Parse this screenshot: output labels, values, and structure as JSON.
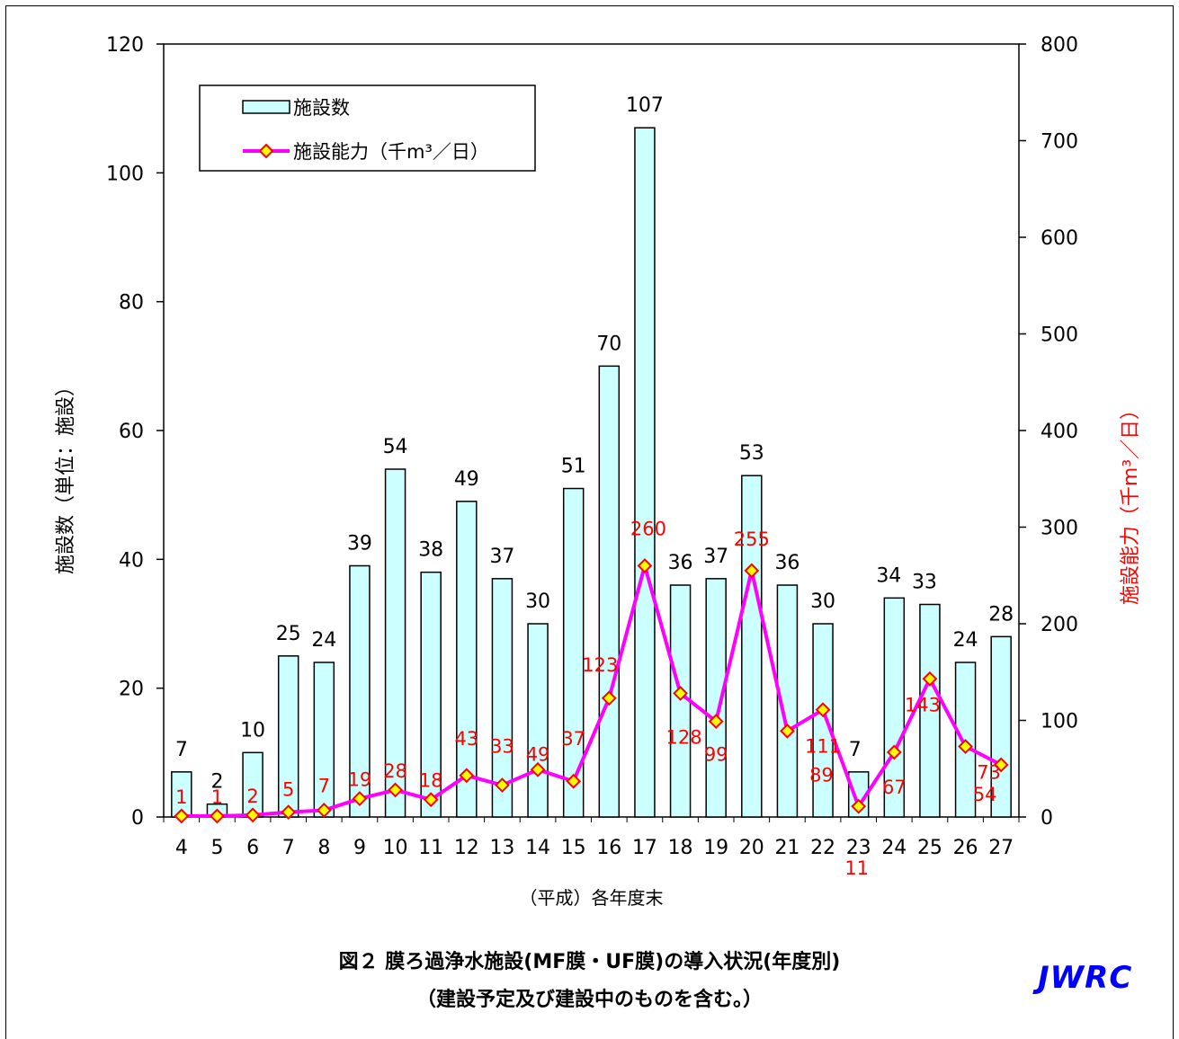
{
  "chart_data": {
    "type": "bar",
    "categories": [
      "4",
      "5",
      "6",
      "7",
      "8",
      "9",
      "10",
      "11",
      "12",
      "13",
      "14",
      "15",
      "16",
      "17",
      "18",
      "19",
      "20",
      "21",
      "22",
      "23",
      "24",
      "25",
      "26",
      "27"
    ],
    "xlabel": "（平成）各年度末",
    "ylabel": "施設数（単位：施設）",
    "y2label": "施設能力（千m³／日）",
    "ylim": [
      0,
      120
    ],
    "y2lim": [
      0,
      800
    ],
    "yticks": [
      "0",
      "20",
      "40",
      "60",
      "80",
      "100",
      "120"
    ],
    "y2ticks": [
      "0",
      "100",
      "200",
      "300",
      "400",
      "500",
      "600",
      "700",
      "800"
    ],
    "grid": false,
    "legend_position": "top-left",
    "series": [
      {
        "name": "施設数",
        "type": "bar",
        "axis": "left",
        "color": "#ccffff",
        "label_color": "#000000",
        "values": [
          7,
          2,
          10,
          25,
          24,
          39,
          54,
          38,
          49,
          37,
          30,
          51,
          70,
          107,
          36,
          37,
          53,
          36,
          30,
          7,
          34,
          33,
          24,
          28
        ]
      },
      {
        "name": "施設能力（千m³／日）",
        "type": "line",
        "axis": "right",
        "color": "#ff00ff",
        "marker_fill": "#ffff00",
        "marker_stroke": "#ff0000",
        "label_color": "#ff0000",
        "values": [
          1,
          1,
          2,
          5,
          7,
          19,
          28,
          18,
          43,
          33,
          49,
          37,
          123,
          260,
          128,
          99,
          255,
          89,
          111,
          11,
          67,
          143,
          73,
          54
        ]
      }
    ]
  },
  "caption": {
    "line1": "図２ 膜ろ過浄水施設(MF膜・UF膜)の導入状況(年度別)",
    "line2": "（建設予定及び建設中のものを含む。）"
  },
  "logo": "JWRC"
}
